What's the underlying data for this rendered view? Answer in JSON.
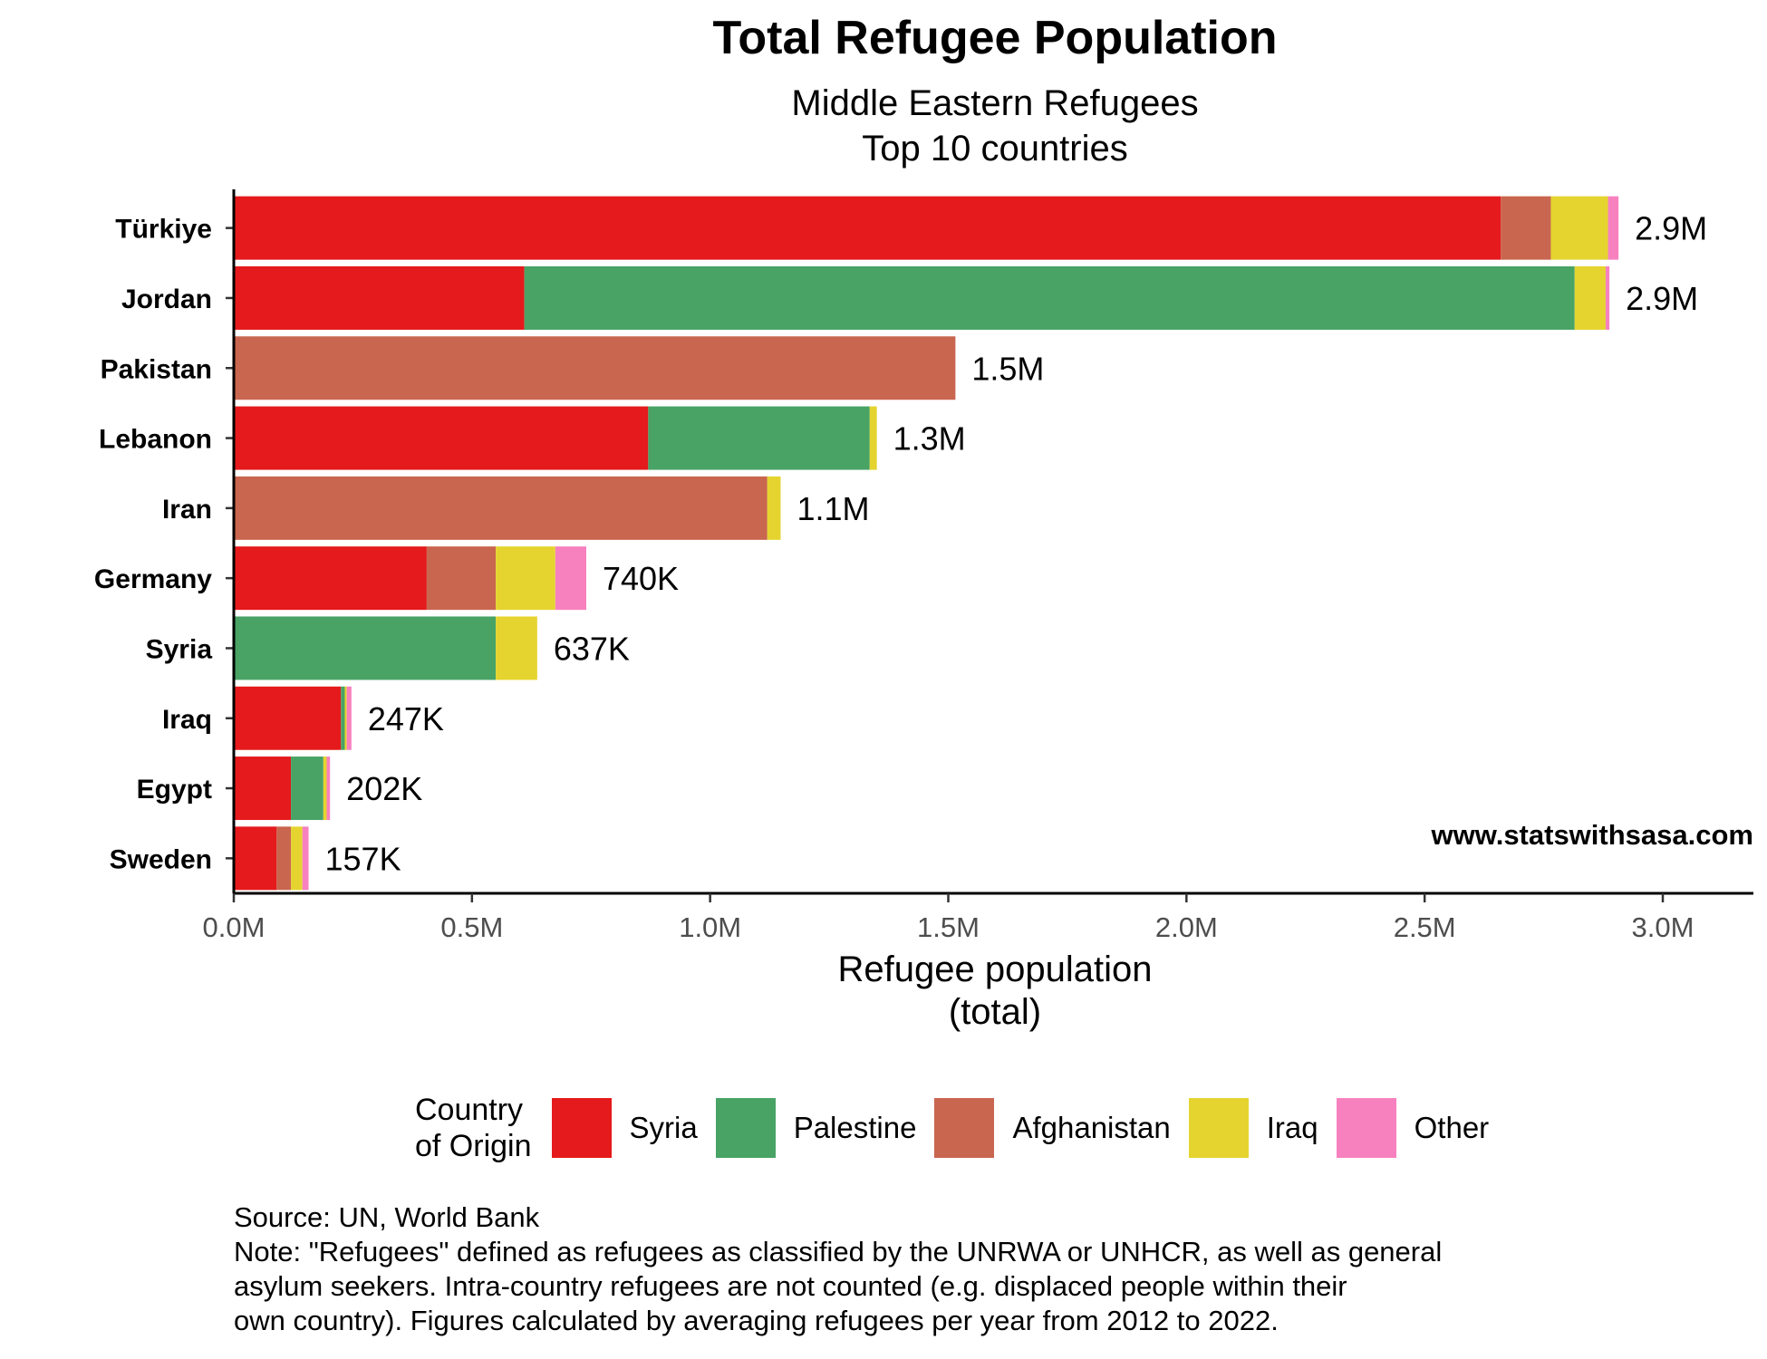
{
  "chart_data": {
    "type": "bar",
    "orientation": "horizontal",
    "stacked": true,
    "title": "Total Refugee Population",
    "subtitle": [
      "Middle Eastern Refugees",
      "Top 10 countries"
    ],
    "xlabel": [
      "Refugee population",
      "(total)"
    ],
    "xlim": [
      0,
      3200000
    ],
    "xticks": [
      0,
      500000,
      1000000,
      1500000,
      2000000,
      2500000,
      3000000
    ],
    "xtick_labels": [
      "0.0M",
      "0.5M",
      "1.0M",
      "1.5M",
      "2.0M",
      "2.5M",
      "3.0M"
    ],
    "categories": [
      "Türkiye",
      "Jordan",
      "Pakistan",
      "Lebanon",
      "Iran",
      "Germany",
      "Syria",
      "Iraq",
      "Egypt",
      "Sweden"
    ],
    "series": [
      {
        "name": "Syria",
        "color": "#E41A1C",
        "values": [
          2660000,
          610000,
          0,
          870000,
          0,
          405000,
          0,
          225000,
          120000,
          90000
        ]
      },
      {
        "name": "Palestine",
        "color": "#48A365",
        "values": [
          0,
          2205000,
          0,
          465000,
          0,
          0,
          550000,
          8000,
          68000,
          0
        ]
      },
      {
        "name": "Afghanistan",
        "color": "#C9664F",
        "values": [
          105000,
          0,
          1515000,
          0,
          1120000,
          145000,
          0,
          0,
          0,
          30000
        ]
      },
      {
        "name": "Iraq",
        "color": "#E5D42F",
        "values": [
          120000,
          65000,
          0,
          15000,
          28000,
          125000,
          87000,
          4000,
          7000,
          24000
        ]
      },
      {
        "name": "Other",
        "color": "#F781BF",
        "values": [
          22000,
          8000,
          0,
          0,
          0,
          65000,
          0,
          10000,
          7000,
          13000
        ]
      }
    ],
    "total_labels": [
      "2.9M",
      "2.9M",
      "1.5M",
      "1.3M",
      "1.1M",
      "740K",
      "637K",
      "247K",
      "202K",
      "157K"
    ],
    "legend_position": "bottom",
    "grid": false
  },
  "legend": {
    "title": [
      "Country",
      "of Origin"
    ],
    "items": [
      {
        "label": "Syria",
        "color": "#E41A1C"
      },
      {
        "label": "Palestine",
        "color": "#48A365"
      },
      {
        "label": "Afghanistan",
        "color": "#C9664F"
      },
      {
        "label": "Iraq",
        "color": "#E5D42F"
      },
      {
        "label": "Other",
        "color": "#F781BF"
      }
    ]
  },
  "watermark": "www.statswithsasa.com",
  "footer": {
    "source": "Source: UN, World Bank",
    "note_lines": [
      "Note: \"Refugees\" defined as refugees as classified by the UNRWA or UNHCR, as well as general",
      "asylum seekers. Intra-country refugees are not counted (e.g. displaced people within their",
      "own country). Figures calculated by averaging refugees per year from 2012 to 2022."
    ]
  }
}
